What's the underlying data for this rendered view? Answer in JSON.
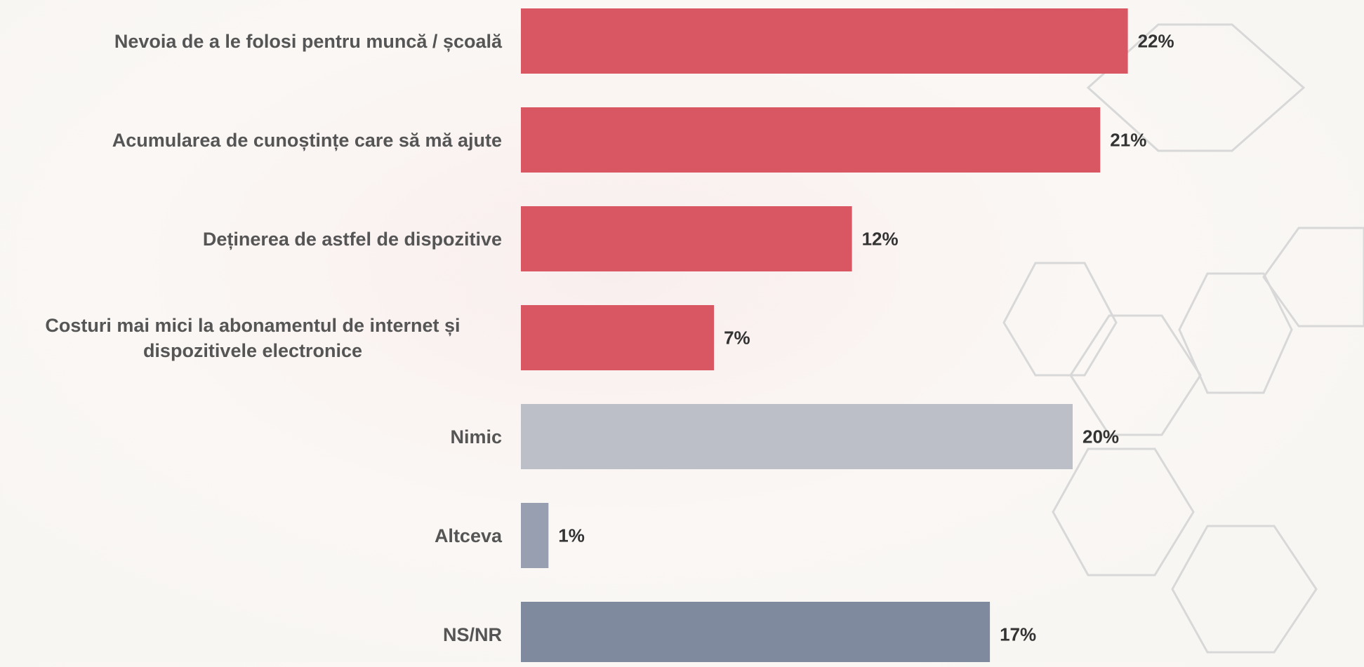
{
  "chart_data": {
    "type": "bar",
    "orientation": "horizontal",
    "categories": [
      "Nevoia de a le folosi pentru muncă / școală",
      "Acumularea de cunoștințe care să mă ajute",
      "Deținerea de astfel de dispozitive",
      "Costuri mai mici la abonamentul de internet și dispozitivele electronice",
      "Nimic",
      "Altceva",
      "NS/NR"
    ],
    "values": [
      22,
      21,
      12,
      7,
      20,
      1,
      17
    ],
    "value_labels": [
      "22%",
      "21%",
      "12%",
      "7%",
      "20%",
      "1%",
      "17%"
    ],
    "colors": [
      "#d95763",
      "#d95763",
      "#d95763",
      "#d95763",
      "#bcbec8",
      "#979fb0",
      "#7f8a9e"
    ]
  }
}
